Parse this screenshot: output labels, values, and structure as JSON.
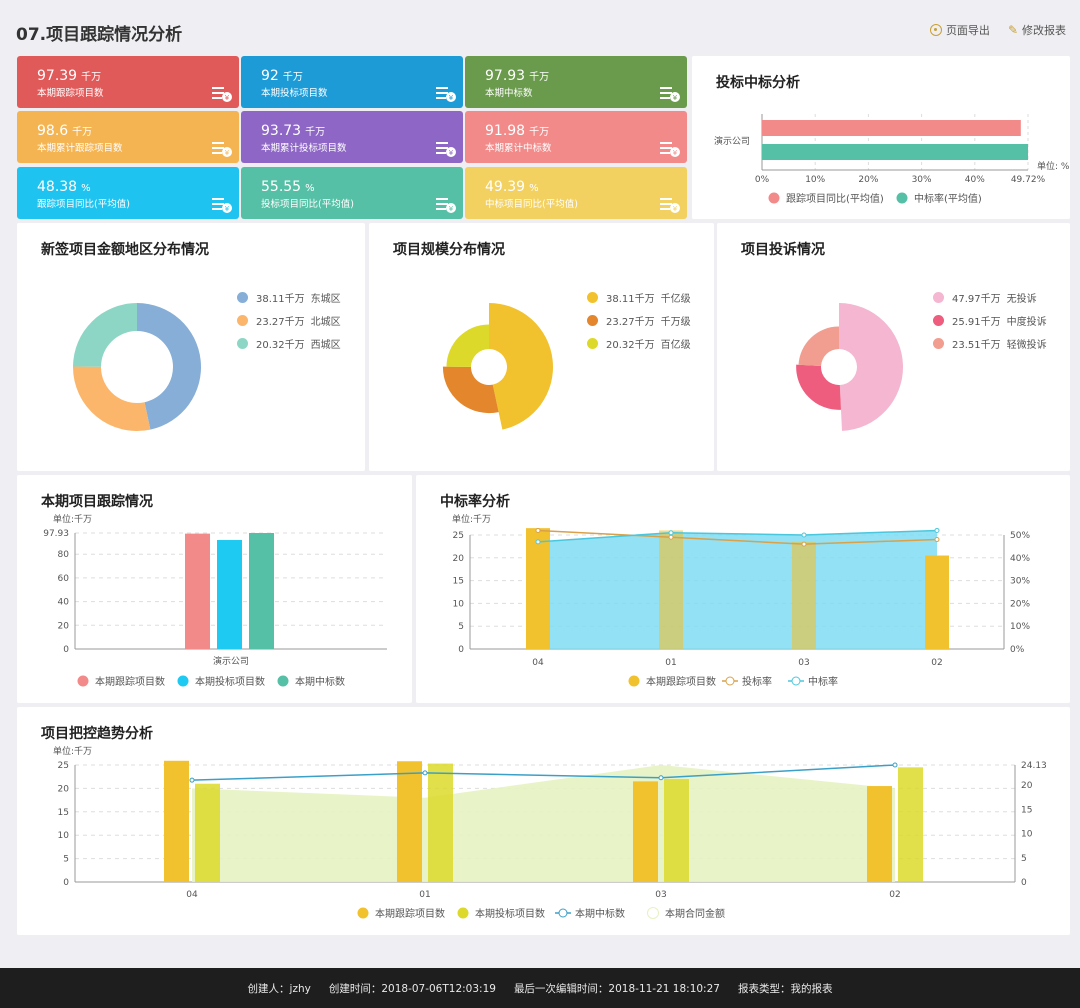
{
  "header": {
    "title": "07.项目跟踪情况分析",
    "export_label": "页面导出",
    "edit_label": "修改报表"
  },
  "kpis": [
    {
      "value": "97.39",
      "unit": "千万",
      "label": "本期跟踪项目数",
      "color": "#e15a5a"
    },
    {
      "value": "92",
      "unit": "千万",
      "label": "本期投标项目数",
      "color": "#1d9bd7"
    },
    {
      "value": "97.93",
      "unit": "千万",
      "label": "本期中标数",
      "color": "#6a9a4c"
    },
    {
      "value": "98.6",
      "unit": "千万",
      "label": "本期累计跟踪项目数",
      "color": "#f5b452"
    },
    {
      "value": "93.73",
      "unit": "千万",
      "label": "本期累计投标项目数",
      "color": "#8e67c6"
    },
    {
      "value": "91.98",
      "unit": "千万",
      "label": "本期累计中标数",
      "color": "#f28a8a"
    },
    {
      "value": "48.38",
      "unit": "%",
      "label": "跟踪项目同比(平均值)",
      "color": "#1fc3f0"
    },
    {
      "value": "55.55",
      "unit": "%",
      "label": "投标项目同比(平均值)",
      "color": "#56c0a6"
    },
    {
      "value": "49.39",
      "unit": "%",
      "label": "中标项目同比(平均值)",
      "color": "#f2d160"
    }
  ],
  "bid_analysis": {
    "title": "投标中标分析",
    "unit": "单位: %",
    "end_label": "49.72%",
    "chart_data": {
      "type": "bar",
      "orientation": "horizontal",
      "categories": [
        "演示公司"
      ],
      "series": [
        {
          "name": "跟踪项目同比(平均值)",
          "values": [
            48.38
          ],
          "color": "#f28a8a"
        },
        {
          "name": "中标率(平均值)",
          "values": [
            49.72
          ],
          "color": "#56c0a6"
        }
      ],
      "xlim": [
        0,
        49.72
      ],
      "xticks": [
        "0%",
        "10%",
        "20%",
        "30%",
        "40%",
        "49.72%"
      ]
    }
  },
  "region_dist": {
    "title": "新签项目金额地区分布情况",
    "chart_data": {
      "type": "pie",
      "variant": "donut",
      "slices": [
        {
          "name": "东城区",
          "value": 38.11,
          "label": "38.11千万",
          "color": "#86aed6"
        },
        {
          "name": "北城区",
          "value": 23.27,
          "label": "23.27千万",
          "color": "#fbb66b"
        },
        {
          "name": "西城区",
          "value": 20.32,
          "label": "20.32千万",
          "color": "#8dd6c5"
        }
      ]
    }
  },
  "scale_dist": {
    "title": "项目规模分布情况",
    "chart_data": {
      "type": "pie",
      "variant": "rose",
      "slices": [
        {
          "name": "千亿级",
          "value": 38.11,
          "label": "38.11千万",
          "color": "#f2c12e"
        },
        {
          "name": "千万级",
          "value": 23.27,
          "label": "23.27千万",
          "color": "#e4862b"
        },
        {
          "name": "百亿级",
          "value": 20.32,
          "label": "20.32千万",
          "color": "#dcd92a"
        }
      ]
    }
  },
  "complaints": {
    "title": "项目投诉情况",
    "chart_data": {
      "type": "pie",
      "variant": "rose",
      "slices": [
        {
          "name": "无投诉",
          "value": 47.97,
          "label": "47.97千万",
          "color": "#f4b6d0"
        },
        {
          "name": "中度投诉",
          "value": 25.91,
          "label": "25.91千万",
          "color": "#ee5c7e"
        },
        {
          "name": "轻微投诉",
          "value": 23.51,
          "label": "23.51千万",
          "color": "#f19d8f"
        }
      ]
    }
  },
  "tracking": {
    "title": "本期项目跟踪情况",
    "unit": "单位:千万",
    "chart_data": {
      "type": "bar",
      "categories": [
        "演示公司"
      ],
      "series": [
        {
          "name": "本期跟踪项目数",
          "values": [
            97.39
          ],
          "color": "#f28a8a"
        },
        {
          "name": "本期投标项目数",
          "values": [
            92
          ],
          "color": "#1ec9f2"
        },
        {
          "name": "本期中标数",
          "values": [
            97.93
          ],
          "color": "#56c0a6"
        }
      ],
      "ylim": [
        0,
        97.93
      ],
      "yticks": [
        "0",
        "20",
        "40",
        "60",
        "80",
        "97.93"
      ]
    }
  },
  "win_rate": {
    "title": "中标率分析",
    "unit": "单位:千万",
    "chart_data": {
      "type": "bar+line",
      "categories": [
        "04",
        "01",
        "03",
        "02"
      ],
      "series": [
        {
          "name": "本期跟踪项目数",
          "type": "bar",
          "values": [
            26.5,
            26,
            23.5,
            20.5
          ],
          "color": "#f2c12e"
        },
        {
          "name": "投标率",
          "type": "line",
          "axis": "right",
          "values": [
            52,
            49,
            46,
            48
          ],
          "color": "#d9a14a"
        },
        {
          "name": "中标率",
          "type": "line",
          "axis": "right",
          "values": [
            47,
            51,
            50,
            52
          ],
          "color": "#4bc7dd"
        }
      ],
      "ylim": [
        0,
        25
      ],
      "yticks": [
        "0",
        "5",
        "10",
        "15",
        "20",
        "25"
      ],
      "y2ticks": [
        "0%",
        "10%",
        "20%",
        "30%",
        "40%",
        "50%"
      ]
    }
  },
  "trend": {
    "title": "项目把控趋势分析",
    "unit": "单位:千万",
    "chart_data": {
      "type": "bar+line+area",
      "categories": [
        "04",
        "01",
        "03",
        "02"
      ],
      "series": [
        {
          "name": "本期跟踪项目数",
          "type": "bar",
          "values": [
            25.9,
            25.8,
            21.5,
            20.5
          ],
          "color": "#f2c12e"
        },
        {
          "name": "本期投标项目数",
          "type": "bar",
          "values": [
            21,
            25.3,
            22,
            24.5
          ],
          "color": "#dcd92a"
        },
        {
          "name": "本期中标数",
          "type": "line",
          "axis": "right",
          "values": [
            21,
            22.5,
            21.5,
            24.13
          ],
          "color": "#3aa0c8"
        },
        {
          "name": "本期合同金额",
          "type": "area",
          "values": [
            20,
            18,
            25,
            20
          ],
          "color": "#e6f2c2"
        }
      ],
      "ylim": [
        0,
        25
      ],
      "yticks": [
        "0",
        "5",
        "10",
        "15",
        "20",
        "25"
      ],
      "y2ticks": [
        "0",
        "5",
        "10",
        "15",
        "20",
        "24.13"
      ]
    }
  },
  "footer": {
    "creator": "创建人：jzhy",
    "created": "创建时间：2018-07-06T12:03:19",
    "edited": "最后一次编辑时间：2018-11-21 18:10:27",
    "type": "报表类型：我的报表"
  }
}
